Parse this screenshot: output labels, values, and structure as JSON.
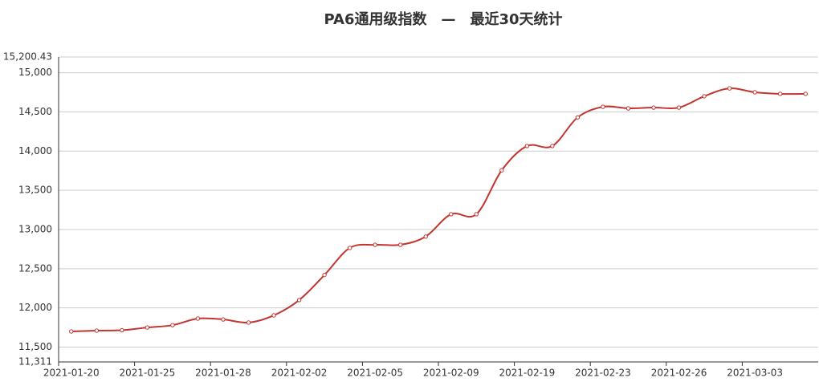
{
  "chart_data": {
    "type": "line",
    "title": "PA6通用级指数　—　最近30天统计",
    "categories": [
      "2021-01-20",
      null,
      null,
      "2021-01-25",
      null,
      null,
      "2021-01-28",
      null,
      null,
      "2021-02-02",
      null,
      null,
      "2021-02-05",
      null,
      null,
      "2021-02-09",
      null,
      null,
      "2021-02-19",
      null,
      null,
      "2021-02-23",
      null,
      null,
      "2021-02-26",
      null,
      null,
      "2021-03-03",
      null,
      null
    ],
    "series": [
      {
        "name": "PA6通用级指数",
        "color": "#c23531",
        "values": [
          11700,
          11710,
          11715,
          11750,
          11780,
          11864,
          11853,
          11813,
          11905,
          12100,
          12420,
          12765,
          12805,
          12805,
          12910,
          13195,
          13195,
          13755,
          14065,
          14065,
          14430,
          14565,
          14545,
          14555,
          14555,
          14700,
          14800,
          14750,
          14730,
          14730
        ]
      }
    ],
    "ylim": [
      11311,
      15200.43
    ],
    "yticks": [
      {
        "value": 11311,
        "label": "11,311"
      },
      {
        "value": 11500,
        "label": "11,500"
      },
      {
        "value": 12000,
        "label": "12,000"
      },
      {
        "value": 12500,
        "label": "12,500"
      },
      {
        "value": 13000,
        "label": "13,000"
      },
      {
        "value": 13500,
        "label": "13,500"
      },
      {
        "value": 14000,
        "label": "14,000"
      },
      {
        "value": 14500,
        "label": "14,500"
      },
      {
        "value": 15000,
        "label": "15,000"
      },
      {
        "value": 15200.43,
        "label": "15,200.43"
      }
    ],
    "grid": true
  }
}
